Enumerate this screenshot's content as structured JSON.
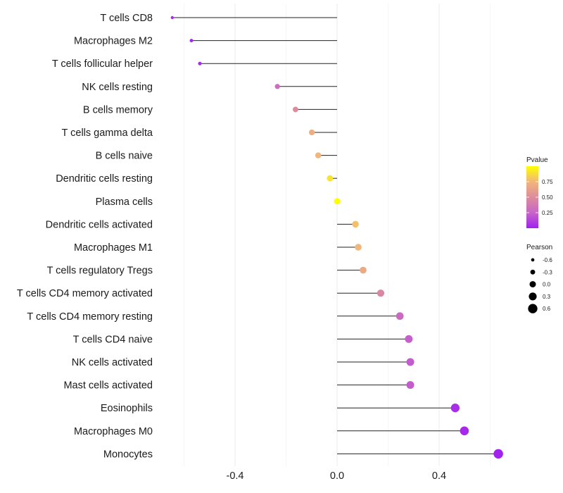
{
  "chart_data": {
    "type": "scatter",
    "subtype": "lollipop",
    "title": "",
    "xlabel": "",
    "ylabel": "",
    "xlim": [
      -0.7,
      0.685
    ],
    "xticks": [
      -0.4,
      0.0,
      0.4
    ],
    "xtick_labels": [
      "-0.4",
      "0.0",
      "0.4"
    ],
    "grid": true,
    "categories": [
      "T cells CD8",
      "Macrophages M2",
      "T cells follicular helper",
      "NK cells resting",
      "B cells memory",
      "T cells gamma delta",
      "B cells naive",
      "Dendritic cells resting",
      "Plasma cells",
      "Dendritic cells activated",
      "Macrophages M1",
      "T cells regulatory  Tregs ",
      "T cells CD4 memory activated",
      "T cells CD4 memory resting",
      "T cells CD4 naive",
      "NK cells activated",
      "Mast cells activated",
      "Eosinophils",
      "Macrophages M0",
      "Monocytes"
    ],
    "series": [
      {
        "name": "Pearson",
        "values": [
          -0.646,
          -0.571,
          -0.538,
          -0.234,
          -0.163,
          -0.099,
          -0.074,
          -0.028,
          0.0,
          0.072,
          0.083,
          0.102,
          0.171,
          0.246,
          0.281,
          0.287,
          0.287,
          0.463,
          0.499,
          0.632
        ]
      },
      {
        "name": "Pvalue",
        "values": [
          0.04,
          0.03,
          0.04,
          0.3,
          0.5,
          0.7,
          0.75,
          0.9,
          1.0,
          0.78,
          0.75,
          0.68,
          0.47,
          0.28,
          0.23,
          0.22,
          0.22,
          0.05,
          0.03,
          0.01
        ]
      }
    ],
    "legend": {
      "placement": "right",
      "color": {
        "title": "Pvalue",
        "ticks": [
          0.25,
          0.5,
          0.75
        ],
        "tick_labels": [
          "0.25",
          "0.50",
          "0.75"
        ],
        "range": [
          0,
          1
        ],
        "gradient": [
          "#a020f0",
          "#c865c8",
          "#dd8c9c",
          "#f2b67a",
          "#ffff00"
        ]
      },
      "size": {
        "title": "Pearson",
        "values": [
          -0.6,
          -0.3,
          0.0,
          0.3,
          0.6
        ],
        "labels": [
          "-0.6",
          "-0.3",
          "0.0",
          "0.3",
          "0.6"
        ]
      }
    }
  }
}
